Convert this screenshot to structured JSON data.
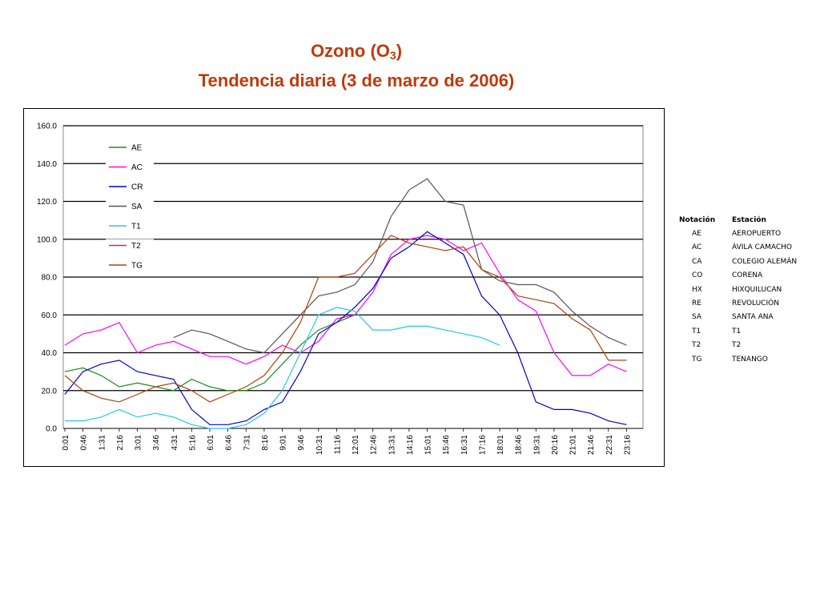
{
  "title": {
    "line1_prefix": "Ozono (O",
    "line1_sub": "3",
    "line1_suffix": ")",
    "line2": "Tendencia diaria (3 de marzo de 2006)"
  },
  "chart_data": {
    "type": "line",
    "ylim": [
      0,
      160
    ],
    "yticks": [
      "0.0",
      "20.0",
      "40.0",
      "60.0",
      "80.0",
      "100.0",
      "120.0",
      "140.0",
      "160.0"
    ],
    "xlabel": "",
    "ylabel": "",
    "grid": true,
    "legend_position": "top-left inside plot",
    "x": [
      "0:01",
      "0:46",
      "1:31",
      "2:16",
      "3:01",
      "3:46",
      "4:31",
      "5:16",
      "6:01",
      "6:46",
      "7:31",
      "8:16",
      "9:01",
      "9:46",
      "10:31",
      "11:16",
      "12:01",
      "12:46",
      "13:31",
      "14:16",
      "15:01",
      "15:46",
      "16:31",
      "17:16",
      "18:01",
      "18:46",
      "19:31",
      "20:16",
      "21:01",
      "21:46",
      "22:31",
      "23:16"
    ],
    "series": [
      {
        "name": "AE",
        "color": "#1a8c1a",
        "values": [
          30,
          32,
          28,
          22,
          24,
          22,
          20,
          26,
          22,
          20,
          20,
          24,
          34,
          44,
          52,
          56,
          60,
          null,
          null,
          null,
          null,
          null,
          null,
          null,
          null,
          null,
          null,
          null,
          null,
          null,
          null,
          null
        ]
      },
      {
        "name": "AC",
        "color": "#ff00ff",
        "values": [
          44,
          50,
          52,
          56,
          40,
          44,
          46,
          42,
          38,
          38,
          34,
          38,
          44,
          40,
          46,
          58,
          60,
          72,
          92,
          100,
          102,
          100,
          94,
          98,
          82,
          68,
          62,
          40,
          28,
          28,
          34,
          30
        ]
      },
      {
        "name": "CR",
        "color": "#0000cc",
        "values": [
          18,
          30,
          34,
          36,
          30,
          28,
          26,
          10,
          2,
          2,
          4,
          10,
          14,
          30,
          50,
          56,
          64,
          74,
          90,
          96,
          104,
          98,
          92,
          70,
          60,
          40,
          14,
          10,
          10,
          8,
          4,
          2
        ]
      },
      {
        "name": "SA",
        "color": "#555555",
        "values": [
          null,
          null,
          null,
          null,
          null,
          null,
          48,
          52,
          50,
          46,
          42,
          40,
          50,
          60,
          70,
          72,
          76,
          88,
          112,
          126,
          132,
          120,
          118,
          84,
          78,
          76,
          76,
          72,
          62,
          54,
          48,
          44
        ]
      },
      {
        "name": "T1",
        "color": "#22c8e8",
        "values": [
          4,
          4,
          6,
          10,
          6,
          8,
          6,
          2,
          0,
          0,
          2,
          8,
          20,
          40,
          60,
          64,
          62,
          52,
          52,
          54,
          54,
          52,
          50,
          48,
          44,
          null,
          null,
          null,
          null,
          null,
          null,
          null
        ]
      },
      {
        "name": "T2",
        "color": "#b84020",
        "values": [
          null,
          null,
          null,
          null,
          null,
          null,
          null,
          null,
          null,
          null,
          null,
          null,
          null,
          null,
          null,
          null,
          null,
          null,
          null,
          null,
          null,
          null,
          null,
          null,
          null,
          null,
          null,
          null,
          null,
          null,
          null,
          null
        ]
      },
      {
        "name": "TG",
        "color": "#b04010",
        "values": [
          28,
          20,
          16,
          14,
          18,
          22,
          24,
          20,
          14,
          18,
          22,
          28,
          40,
          56,
          80,
          80,
          82,
          92,
          102,
          98,
          96,
          94,
          96,
          84,
          80,
          70,
          68,
          66,
          58,
          52,
          36,
          36
        ]
      }
    ]
  },
  "station_table": {
    "header_code": "Notación",
    "header_name": "Estación",
    "rows": [
      {
        "code": "AE",
        "name": "AEROPUERTO"
      },
      {
        "code": "AC",
        "name": "ÁVILA CAMACHO"
      },
      {
        "code": "CA",
        "name": "COLEGIO ALEMÁN"
      },
      {
        "code": "CO",
        "name": "CORENA"
      },
      {
        "code": "HX",
        "name": "HIXQUILUCAN"
      },
      {
        "code": "RE",
        "name": "REVOLUCIÓN"
      },
      {
        "code": "SA",
        "name": "SANTA ANA"
      },
      {
        "code": "T1",
        "name": "T1"
      },
      {
        "code": "T2",
        "name": "T2"
      },
      {
        "code": "TG",
        "name": "TENANGO"
      }
    ]
  }
}
